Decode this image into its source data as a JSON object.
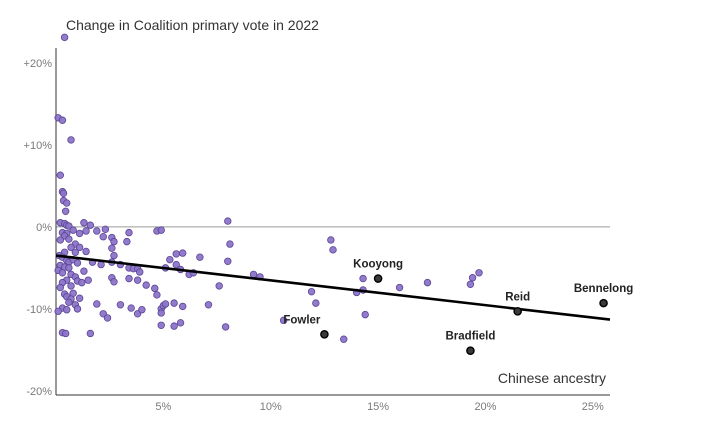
{
  "chart_data": {
    "type": "scatter",
    "title": "Change in Coalition primary vote in 2022",
    "xlabel": "Chinese ancestry",
    "ylabel": "",
    "xlim": [
      0,
      25.8
    ],
    "ylim": [
      -20.5,
      24
    ],
    "x_ticks": [
      {
        "value": 5,
        "label": "5%"
      },
      {
        "value": 10,
        "label": "10%"
      },
      {
        "value": 15,
        "label": "15%"
      },
      {
        "value": 20,
        "label": "20%"
      },
      {
        "value": 25,
        "label": "25%"
      }
    ],
    "y_ticks": [
      {
        "value": 20,
        "label": "+20%"
      },
      {
        "value": 10,
        "label": "+10%"
      },
      {
        "value": 0,
        "label": "0%"
      },
      {
        "value": -10,
        "label": "-10%"
      },
      {
        "value": -20,
        "label": "-20%"
      }
    ],
    "trend_line": {
      "x": [
        0,
        25.8
      ],
      "y": [
        -3.5,
        -11.3
      ]
    },
    "colors": {
      "point_fill": "#8C74C7",
      "point_stroke": "#5B4597",
      "highlight_fill": "#3A3A3A",
      "trend": "#000000",
      "axis": "#333333",
      "grid": "#9a9a9a"
    },
    "points": [
      {
        "x": 0.4,
        "y": 23.1
      },
      {
        "x": 0.1,
        "y": 13.3
      },
      {
        "x": 0.3,
        "y": 13.0
      },
      {
        "x": 0.7,
        "y": 10.6
      },
      {
        "x": 0.2,
        "y": 6.3
      },
      {
        "x": 0.3,
        "y": 4.3
      },
      {
        "x": 0.35,
        "y": 4.1
      },
      {
        "x": 0.35,
        "y": 3.2
      },
      {
        "x": 0.5,
        "y": 2.9
      },
      {
        "x": 0.45,
        "y": 1.9
      },
      {
        "x": 0.2,
        "y": 0.5
      },
      {
        "x": 0.4,
        "y": 0.4
      },
      {
        "x": 0.5,
        "y": 0.2
      },
      {
        "x": 0.6,
        "y": 0.1
      },
      {
        "x": 0.8,
        "y": -0.4
      },
      {
        "x": 0.3,
        "y": -0.7
      },
      {
        "x": 0.5,
        "y": -0.8
      },
      {
        "x": 0.4,
        "y": -1.1
      },
      {
        "x": 0.2,
        "y": -1.6
      },
      {
        "x": 0.6,
        "y": -1.5
      },
      {
        "x": 0.9,
        "y": -2.1
      },
      {
        "x": 0.7,
        "y": -2.5
      },
      {
        "x": 0.4,
        "y": -3.1
      },
      {
        "x": 0.9,
        "y": -3.1
      },
      {
        "x": 0.15,
        "y": -3.5
      },
      {
        "x": 0.3,
        "y": -3.7
      },
      {
        "x": 0.5,
        "y": -4.1
      },
      {
        "x": 0.6,
        "y": -4.3
      },
      {
        "x": 0.8,
        "y": -4.0
      },
      {
        "x": 1.0,
        "y": -4.4
      },
      {
        "x": 0.2,
        "y": -4.7
      },
      {
        "x": 0.4,
        "y": -4.9
      },
      {
        "x": 0.6,
        "y": -5.0
      },
      {
        "x": 0.1,
        "y": -5.3
      },
      {
        "x": 0.3,
        "y": -5.6
      },
      {
        "x": 0.7,
        "y": -5.8
      },
      {
        "x": 0.9,
        "y": -6.1
      },
      {
        "x": 0.5,
        "y": -6.5
      },
      {
        "x": 0.3,
        "y": -6.8
      },
      {
        "x": 0.7,
        "y": -7.2
      },
      {
        "x": 1.0,
        "y": -6.6
      },
      {
        "x": 0.2,
        "y": -7.4
      },
      {
        "x": 0.4,
        "y": -8.2
      },
      {
        "x": 0.8,
        "y": -8.1
      },
      {
        "x": 0.5,
        "y": -8.5
      },
      {
        "x": 0.7,
        "y": -8.8
      },
      {
        "x": 1.1,
        "y": -8.7
      },
      {
        "x": 0.6,
        "y": -9.2
      },
      {
        "x": 0.9,
        "y": -9.5
      },
      {
        "x": 0.3,
        "y": -9.9
      },
      {
        "x": 0.1,
        "y": -10.3
      },
      {
        "x": 0.5,
        "y": -10.1
      },
      {
        "x": 1.0,
        "y": -10.0
      },
      {
        "x": 0.3,
        "y": -12.9
      },
      {
        "x": 0.45,
        "y": -13.0
      },
      {
        "x": 1.1,
        "y": -0.8
      },
      {
        "x": 1.3,
        "y": 0.5
      },
      {
        "x": 1.4,
        "y": -0.5
      },
      {
        "x": 1.6,
        "y": 0.2
      },
      {
        "x": 1.9,
        "y": -0.5
      },
      {
        "x": 2.3,
        "y": -0.3
      },
      {
        "x": 2.2,
        "y": -1.2
      },
      {
        "x": 1.1,
        "y": -2.5
      },
      {
        "x": 1.4,
        "y": -3.0
      },
      {
        "x": 1.7,
        "y": -4.3
      },
      {
        "x": 2.1,
        "y": -4.6
      },
      {
        "x": 1.3,
        "y": -5.4
      },
      {
        "x": 1.2,
        "y": -6.8
      },
      {
        "x": 1.5,
        "y": -6.5
      },
      {
        "x": 2.6,
        "y": -1.3
      },
      {
        "x": 2.7,
        "y": -1.8
      },
      {
        "x": 2.6,
        "y": -2.6
      },
      {
        "x": 2.6,
        "y": -4.3
      },
      {
        "x": 2.7,
        "y": -3.5
      },
      {
        "x": 3.0,
        "y": -4.6
      },
      {
        "x": 2.6,
        "y": -6.2
      },
      {
        "x": 2.7,
        "y": -6.7
      },
      {
        "x": 1.9,
        "y": -9.4
      },
      {
        "x": 2.2,
        "y": -10.6
      },
      {
        "x": 2.4,
        "y": -11.1
      },
      {
        "x": 1.6,
        "y": -13.0
      },
      {
        "x": 3.0,
        "y": -9.5
      },
      {
        "x": 3.3,
        "y": -1.8
      },
      {
        "x": 3.4,
        "y": -0.7
      },
      {
        "x": 3.4,
        "y": -5.0
      },
      {
        "x": 3.6,
        "y": -5.1
      },
      {
        "x": 3.8,
        "y": -5.1
      },
      {
        "x": 3.9,
        "y": -5.5
      },
      {
        "x": 3.8,
        "y": -6.5
      },
      {
        "x": 3.4,
        "y": -6.3
      },
      {
        "x": 3.5,
        "y": -9.9
      },
      {
        "x": 3.8,
        "y": -10.6
      },
      {
        "x": 4.0,
        "y": -10.1
      },
      {
        "x": 4.2,
        "y": -7.1
      },
      {
        "x": 4.6,
        "y": -7.5
      },
      {
        "x": 4.7,
        "y": -0.5
      },
      {
        "x": 4.9,
        "y": -0.4
      },
      {
        "x": 4.7,
        "y": -8.3
      },
      {
        "x": 4.9,
        "y": -10.0
      },
      {
        "x": 5.0,
        "y": -9.6
      },
      {
        "x": 4.9,
        "y": -10.5
      },
      {
        "x": 5.1,
        "y": -9.4
      },
      {
        "x": 4.9,
        "y": -12.0
      },
      {
        "x": 5.1,
        "y": -5.0
      },
      {
        "x": 5.3,
        "y": -4.0
      },
      {
        "x": 5.6,
        "y": -3.3
      },
      {
        "x": 5.6,
        "y": -4.6
      },
      {
        "x": 5.9,
        "y": -3.2
      },
      {
        "x": 5.8,
        "y": -5.2
      },
      {
        "x": 5.5,
        "y": -9.3
      },
      {
        "x": 5.9,
        "y": -9.7
      },
      {
        "x": 5.5,
        "y": -12.1
      },
      {
        "x": 5.8,
        "y": -11.7
      },
      {
        "x": 6.2,
        "y": -5.8
      },
      {
        "x": 6.4,
        "y": -5.6
      },
      {
        "x": 6.7,
        "y": -3.7
      },
      {
        "x": 7.1,
        "y": -9.5
      },
      {
        "x": 7.6,
        "y": -7.2
      },
      {
        "x": 7.9,
        "y": -12.2
      },
      {
        "x": 8.0,
        "y": -4.2
      },
      {
        "x": 8.1,
        "y": -2.1
      },
      {
        "x": 8.0,
        "y": 0.7
      },
      {
        "x": 9.2,
        "y": -5.8
      },
      {
        "x": 9.5,
        "y": -6.1
      },
      {
        "x": 10.6,
        "y": -11.4
      },
      {
        "x": 11.9,
        "y": -7.9
      },
      {
        "x": 12.1,
        "y": -9.3
      },
      {
        "x": 12.8,
        "y": -1.6
      },
      {
        "x": 12.9,
        "y": -2.8
      },
      {
        "x": 13.4,
        "y": -13.7
      },
      {
        "x": 14.0,
        "y": -8.0
      },
      {
        "x": 14.3,
        "y": -6.3
      },
      {
        "x": 14.3,
        "y": -7.7
      },
      {
        "x": 14.4,
        "y": -10.7
      },
      {
        "x": 16.0,
        "y": -7.4
      },
      {
        "x": 17.3,
        "y": -6.8
      },
      {
        "x": 19.3,
        "y": -7.0
      },
      {
        "x": 19.4,
        "y": -6.2
      },
      {
        "x": 19.7,
        "y": -5.6
      }
    ],
    "highlights": [
      {
        "name": "Kooyong",
        "x": 15.0,
        "y": -6.3,
        "label_pos": "above"
      },
      {
        "name": "Fowler",
        "x": 12.5,
        "y": -13.1,
        "label_pos": "above-left"
      },
      {
        "name": "Bradfield",
        "x": 19.3,
        "y": -15.1,
        "label_pos": "above"
      },
      {
        "name": "Reid",
        "x": 21.5,
        "y": -10.3,
        "label_pos": "above"
      },
      {
        "name": "Bennelong",
        "x": 25.5,
        "y": -9.3,
        "label_pos": "above"
      }
    ]
  }
}
